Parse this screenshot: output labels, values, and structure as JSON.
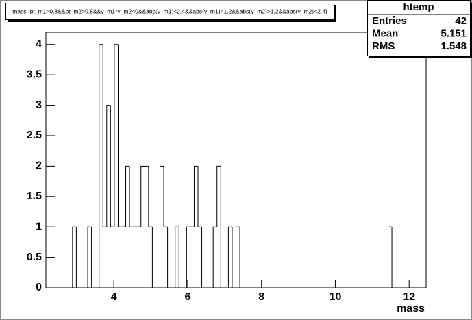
{
  "chart_data": {
    "type": "histogram",
    "title": "mass {pt_m1>0.8&&pt_m2>0.8&&y_m1*y_m2<0&&abs(y_m1)<2.4&&abs(y_m1)>1.2&&abs(y_m2)>1.2&&abs(y_m2)<2.4}",
    "x_label": "mass",
    "stats": {
      "name": "htemp",
      "labels": [
        "Entries",
        "Mean",
        "RMS"
      ],
      "values": [
        42,
        5.151,
        1.548
      ]
    },
    "bins": [
      2.16,
      2.263,
      2.366,
      2.469,
      2.572,
      2.675,
      2.778,
      2.881,
      2.984,
      3.087,
      3.19,
      3.293,
      3.396,
      3.499,
      3.602,
      3.705,
      3.808,
      3.911,
      4.014,
      4.117,
      4.22,
      4.323,
      4.426,
      4.529,
      4.632,
      4.735,
      4.838,
      4.941,
      5.044,
      5.147,
      5.25,
      5.353,
      5.456,
      5.559,
      5.662,
      5.765,
      5.868,
      5.971,
      6.074,
      6.177,
      6.28,
      6.383,
      6.486,
      6.589,
      6.692,
      6.795,
      6.898,
      7.001,
      7.104,
      7.207,
      7.31,
      7.413,
      7.516,
      7.619,
      7.722,
      7.825,
      7.928,
      8.031,
      8.134,
      8.237,
      8.34,
      8.443,
      8.546,
      8.649,
      8.752,
      8.855,
      8.958,
      9.061,
      9.164,
      9.267,
      9.37,
      9.473,
      9.576,
      9.679,
      9.782,
      9.885,
      9.988,
      10.091,
      10.194,
      10.297,
      10.4,
      10.503,
      10.606,
      10.709,
      10.812,
      10.915,
      11.018,
      11.121,
      11.224,
      11.327,
      11.43,
      11.533,
      11.636,
      11.739,
      11.842,
      11.945,
      12.048,
      12.151,
      12.254,
      12.357,
      12.46
    ],
    "values": [
      0,
      0,
      0,
      0,
      0,
      0,
      0,
      1,
      0,
      0,
      0,
      1,
      0,
      0,
      4,
      1,
      3,
      1,
      4,
      1,
      1,
      2,
      1,
      1,
      1,
      2,
      2,
      1,
      0,
      0,
      2,
      1,
      0,
      0,
      1,
      0,
      0,
      1,
      1,
      2,
      1,
      0,
      0,
      0,
      1,
      2,
      0,
      0,
      1,
      0,
      1,
      0,
      0,
      0,
      0,
      0,
      0,
      0,
      0,
      0,
      0,
      0,
      0,
      0,
      0,
      0,
      0,
      0,
      0,
      0,
      0,
      0,
      0,
      0,
      0,
      0,
      0,
      0,
      0,
      0,
      0,
      0,
      0,
      0,
      0,
      0,
      0,
      0,
      0,
      0,
      1,
      0,
      0,
      0,
      0,
      0,
      0,
      0,
      0,
      0
    ],
    "color": "#000000",
    "xlim": [
      2.16,
      12.46
    ],
    "xticks": [
      4,
      6,
      8,
      10,
      12
    ],
    "ylim": [
      0,
      4.2
    ],
    "yticks": [
      0,
      0.5,
      1,
      1.5,
      2,
      2.5,
      3,
      3.5,
      4
    ]
  }
}
